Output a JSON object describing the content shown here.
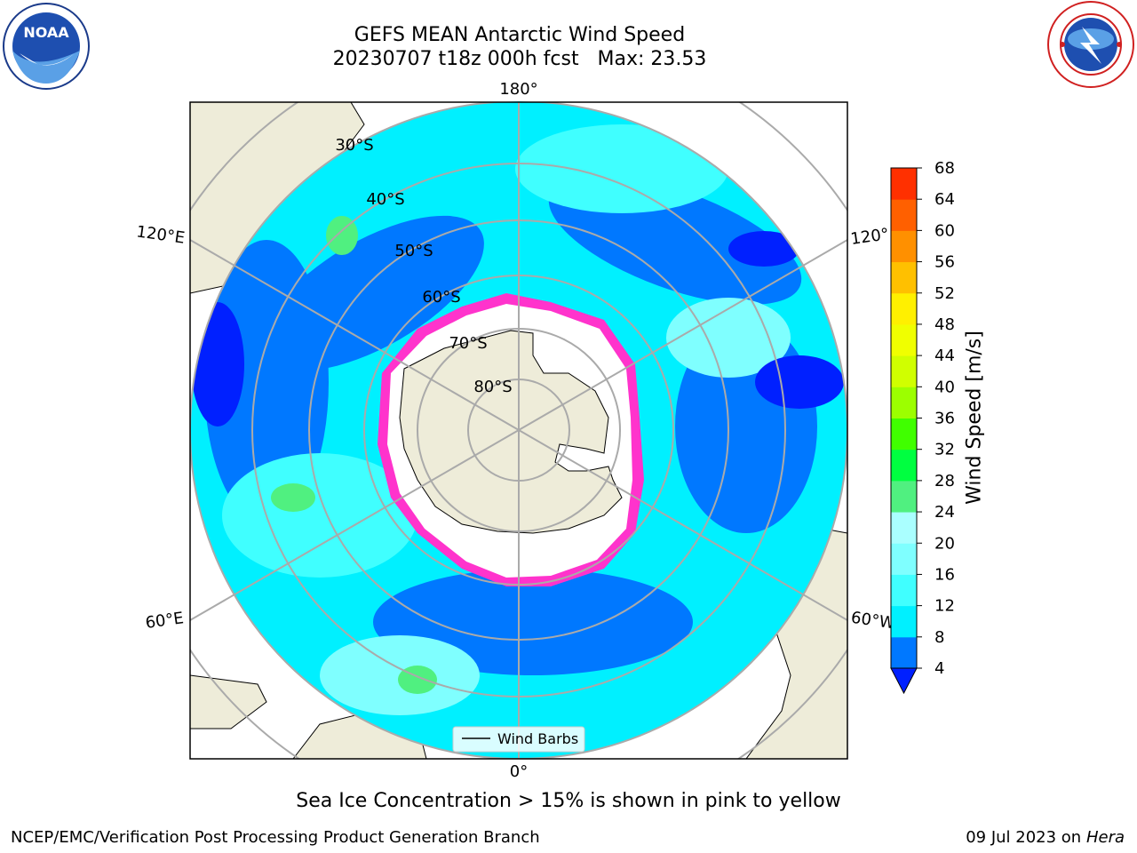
{
  "title": {
    "line1": "GEFS MEAN Antarctic Wind Speed",
    "line2": "20230707 t18z 000h fcst   Max: 23.53"
  },
  "map": {
    "projection": "south-polar-stereographic",
    "top_lon_label": "180°",
    "bottom_lon_label": "0°",
    "left_upper_lon_label": "120°E",
    "left_lower_lon_label": "60°E",
    "right_upper_lon_label": "120°",
    "right_lower_lon_label": "60°W",
    "lat_labels": [
      "30°S",
      "40°S",
      "50°S",
      "60°S",
      "70°S",
      "80°S"
    ],
    "legend_label": "Wind Barbs",
    "colors": {
      "land": "#eeecd9",
      "ice": "#ffffff",
      "sea_ice_edge": "#ff33cc",
      "ocean_low": "#0078ff",
      "ocean_mid": "#00f0ff",
      "ocean_high": "#00ffff"
    }
  },
  "chart_data": {
    "type": "heatmap",
    "title": "GEFS MEAN Antarctic Wind Speed",
    "colorbar_label": "Wind Speed [m/s]",
    "colorbar_ticks": [
      4,
      8,
      12,
      16,
      20,
      24,
      28,
      32,
      36,
      40,
      44,
      48,
      52,
      56,
      60,
      64,
      68
    ],
    "colorbar_colors": [
      "#0078ff",
      "#00f0ff",
      "#40ffff",
      "#7fffff",
      "#aaffff",
      "#50f080",
      "#00ff40",
      "#40ff00",
      "#9cff00",
      "#d0ff00",
      "#f0ff00",
      "#fff000",
      "#ffc000",
      "#ff9000",
      "#ff6000",
      "#ff3000"
    ],
    "extend": "min",
    "extend_color": "#0020ff",
    "max_value": 23.53
  },
  "caption": "Sea Ice Concentration > 15% is shown in pink to yellow",
  "footer": {
    "left": "NCEP/EMC/Verification Post Processing Product Generation Branch",
    "right_date": "09 Jul 2023 on ",
    "right_host": "Hera"
  }
}
